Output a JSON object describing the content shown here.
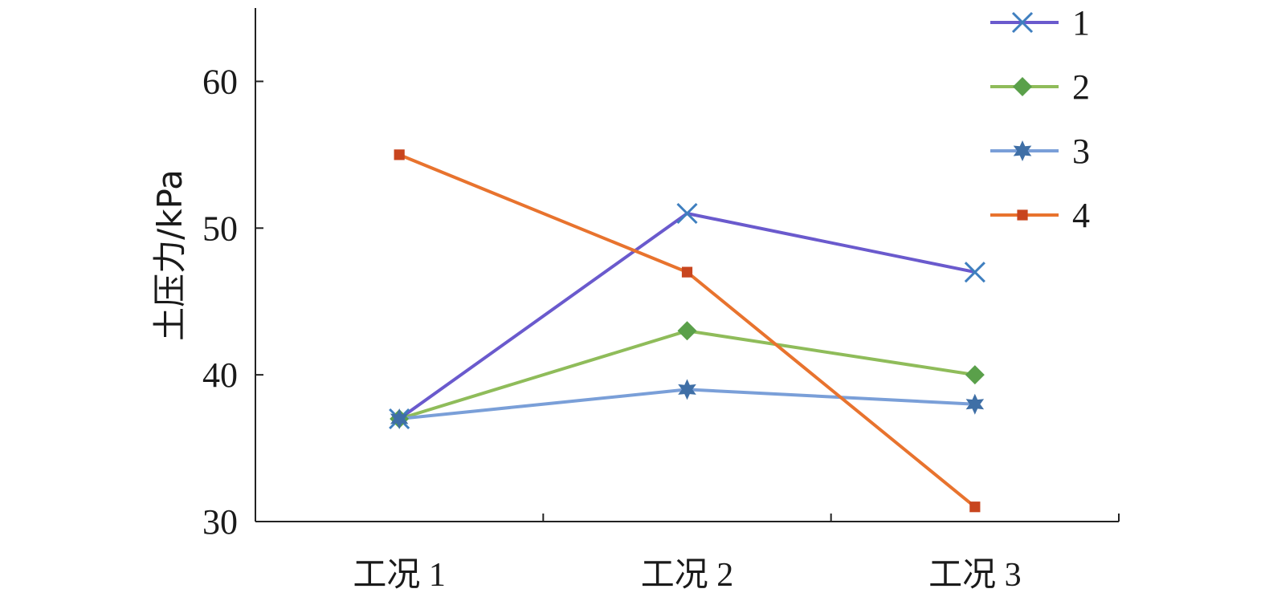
{
  "chart_data": {
    "type": "line",
    "title": "",
    "ylabel": "土压力/kPa",
    "xlabel": "",
    "categories": [
      "工况 1",
      "工况 2",
      "工况 3"
    ],
    "ylim": [
      30,
      65
    ],
    "yticks": [
      30,
      40,
      50,
      60
    ],
    "grid": false,
    "legend_position": "top-right",
    "series": [
      {
        "name": "1",
        "values": [
          37,
          51,
          47
        ],
        "color": "#6a5acd",
        "marker": "x-icon",
        "marker_color": "#3f7fbf"
      },
      {
        "name": "2",
        "values": [
          37,
          43,
          40
        ],
        "color": "#8fbc5a",
        "marker": "diamond-icon",
        "marker_color": "#5aa04a"
      },
      {
        "name": "3",
        "values": [
          37,
          39,
          38
        ],
        "color": "#7a9fd8",
        "marker": "star-icon",
        "marker_color": "#3f6fa6"
      },
      {
        "name": "4",
        "values": [
          55,
          47,
          31
        ],
        "color": "#e8732e",
        "marker": "square-icon",
        "marker_color": "#c8451e"
      }
    ]
  }
}
